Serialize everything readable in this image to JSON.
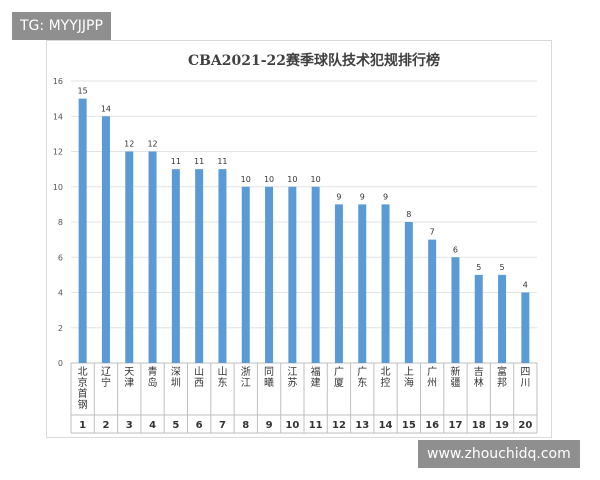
{
  "watermarks": {
    "top": "TG: MYYJJPP",
    "bottom": "www.zhouchidq.com"
  },
  "chart_data": {
    "type": "bar",
    "title": "CBA2021-22赛季球队技术犯规排行榜",
    "categories": [
      "北京首钢",
      "辽宁",
      "天津",
      "青岛",
      "深圳",
      "山西",
      "山东",
      "浙江",
      "同曦",
      "江苏",
      "福建",
      "广厦",
      "广东",
      "北控",
      "上海",
      "广州",
      "新疆",
      "吉林",
      "富邦",
      "四川"
    ],
    "ranks": [
      "1",
      "2",
      "3",
      "4",
      "5",
      "6",
      "7",
      "8",
      "9",
      "10",
      "11",
      "12",
      "13",
      "14",
      "15",
      "16",
      "17",
      "18",
      "19",
      "20"
    ],
    "values": [
      15,
      14,
      12,
      12,
      11,
      11,
      11,
      10,
      10,
      10,
      10,
      9,
      9,
      9,
      8,
      7,
      6,
      5,
      5,
      4
    ],
    "ylim": [
      0,
      16
    ],
    "yticks": [
      0,
      2,
      4,
      6,
      8,
      10,
      12,
      14,
      16
    ],
    "grid": true,
    "bar_color": "#5b9bd5",
    "legend": "none"
  }
}
